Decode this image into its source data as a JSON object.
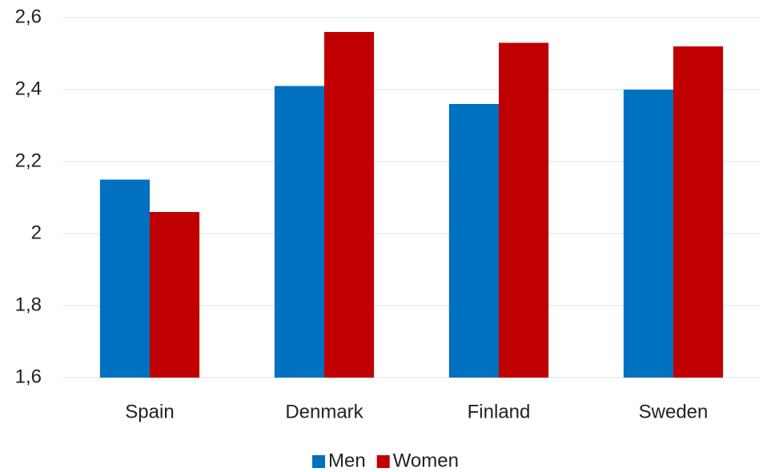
{
  "chart_data": {
    "type": "bar",
    "categories": [
      "Spain",
      "Denmark",
      "Finland",
      "Sweden"
    ],
    "series": [
      {
        "name": "Men",
        "color": "#0070c0",
        "values": [
          2.15,
          2.41,
          2.36,
          2.4
        ]
      },
      {
        "name": "Women",
        "color": "#c00000",
        "values": [
          2.06,
          2.56,
          2.53,
          2.52
        ]
      }
    ],
    "ylim": [
      1.6,
      2.6
    ],
    "yticks": [
      {
        "value": 1.6,
        "label": "1,6"
      },
      {
        "value": 1.8,
        "label": "1,8"
      },
      2,
      {
        "value": 2.2,
        "label": "2,2"
      },
      {
        "value": 2.4,
        "label": "2,4"
      },
      {
        "value": 2.6,
        "label": "2,6"
      }
    ],
    "grid": true,
    "legend": "bottom"
  }
}
